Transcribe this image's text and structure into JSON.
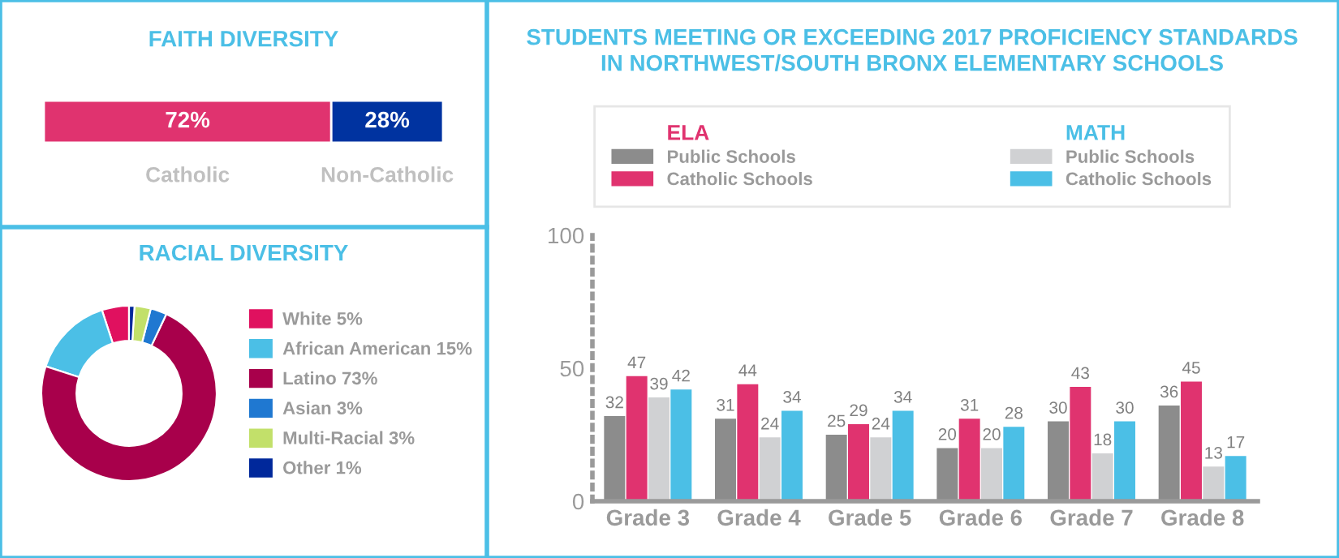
{
  "chart_data": [
    {
      "type": "bar",
      "orientation": "horizontal",
      "stacked": true,
      "title": "FAITH DIVERSITY",
      "categories": [
        null
      ],
      "series": [
        {
          "name": "Catholic",
          "color": "#e0336f",
          "values": [
            72
          ],
          "value_labels": [
            "72%"
          ]
        },
        {
          "name": "Non-Catholic",
          "color": "#0033a0",
          "values": [
            28
          ],
          "value_labels": [
            "28%"
          ]
        }
      ],
      "grid": false
    },
    {
      "type": "donut",
      "title": "RACIAL DIVERSITY",
      "categories": [
        "White 5%",
        "African American 15%",
        "Latino 73%",
        "Asian 3%",
        "Multi-Racial 3%",
        "Other 1%"
      ],
      "values": [
        5,
        15,
        73,
        3,
        3,
        1
      ],
      "colors": [
        "#e0115f",
        "#4bbfe6",
        "#a8004b",
        "#1f78d1",
        "#c2e06a",
        "#00289b"
      ],
      "legend": "right"
    },
    {
      "type": "bar",
      "title": "STUDENTS MEETING OR EXCEEDING 2017 PROFICIENCY STANDARDS\nIN NORTHWEST/SOUTH BRONX ELEMENTARY SCHOOLS",
      "categories": [
        "Grade 3",
        "Grade 4",
        "Grade 5",
        "Grade 6",
        "Grade 7",
        "Grade 8"
      ],
      "series": [
        {
          "name": "Public Schools",
          "color": "#8c8c8c",
          "values": [
            32,
            31,
            25,
            20,
            30,
            36
          ]
        },
        {
          "name": "Catholic Schools",
          "color": "#e0336f",
          "values": [
            47,
            44,
            29,
            31,
            43,
            45
          ]
        },
        {
          "name": "Public Schools",
          "color": "#d0d1d3",
          "values": [
            39,
            24,
            24,
            20,
            18,
            13
          ]
        },
        {
          "name": "Catholic Schools",
          "color": "#4bbfe6",
          "values": [
            42,
            34,
            34,
            28,
            30,
            17
          ]
        }
      ],
      "annotations": [
        "ELA",
        "MATH"
      ],
      "ylim": [
        0,
        100
      ],
      "yticks": [
        0,
        50,
        100
      ],
      "data_labels": true,
      "legend": "top",
      "grid": false
    }
  ]
}
